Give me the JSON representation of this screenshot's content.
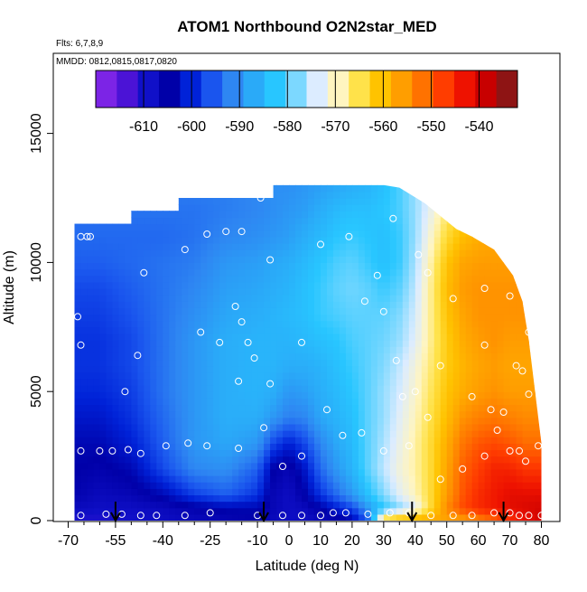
{
  "chart_data": {
    "type": "heatmap",
    "title": "ATOM1 Northbound O2N2star_MED",
    "annotations": [
      "Flts: 6,7,8,9",
      "MMDD: 0812,0815,0817,0820"
    ],
    "xlabel": "Latitude (deg N)",
    "ylabel": "Altitude (m)",
    "xlim": [
      -70,
      80
    ],
    "ylim": [
      0,
      17500
    ],
    "x_ticks": [
      -70,
      -55,
      -40,
      -25,
      -10,
      0,
      10,
      20,
      30,
      40,
      50,
      60,
      70,
      80
    ],
    "x_tick_labels": [
      "-70",
      "-55",
      "-40",
      "-25",
      "-10",
      "0",
      "10",
      "20",
      "30",
      "40",
      "50",
      "60",
      "70",
      "80"
    ],
    "minor_x_ticks": [
      -65,
      -60,
      -50,
      -45,
      -35,
      -30,
      -20,
      -15,
      -5,
      5,
      15,
      25,
      35,
      45,
      55,
      65,
      75
    ],
    "y_ticks": [
      0,
      5000,
      10000,
      15000
    ],
    "y_tick_labels": [
      "0",
      "5000",
      "10000",
      "15000"
    ],
    "colorbar": {
      "range": [
        -620,
        -532
      ],
      "ticks": [
        -610,
        -600,
        -590,
        -580,
        -570,
        -560,
        -550,
        -540
      ],
      "tick_labels": [
        "-610",
        "-600",
        "-590",
        "-580",
        "-570",
        "-560",
        "-550",
        "-540"
      ],
      "placement": "top-inside",
      "colors": [
        "#7c24e6",
        "#4b13d6",
        "#1010c8",
        "#0000a8",
        "#0022d8",
        "#1a55ee",
        "#2e86f2",
        "#2aaaf8",
        "#28c6ff",
        "#7cd8ff",
        "#dcecff",
        "#fff5c0",
        "#ffe24a",
        "#ffc300",
        "#ff9e00",
        "#ff7200",
        "#ff3d00",
        "#ee1200",
        "#c80000",
        "#8e1414"
      ]
    },
    "grid": false,
    "coverage": [
      [
        -68,
        11500
      ],
      [
        -50,
        11500
      ],
      [
        -50,
        12000
      ],
      [
        -35,
        12000
      ],
      [
        -35,
        12500
      ],
      [
        -5,
        12500
      ],
      [
        -5,
        13000
      ],
      [
        30,
        13000
      ],
      [
        35,
        12900
      ],
      [
        43,
        12300
      ],
      [
        48,
        11800
      ],
      [
        53,
        11300
      ],
      [
        58,
        11000
      ],
      [
        65,
        10500
      ],
      [
        71,
        9500
      ],
      [
        74,
        8500
      ],
      [
        76,
        7000
      ],
      [
        78,
        5000
      ],
      [
        80,
        3000
      ],
      [
        80,
        0
      ],
      [
        -68,
        0
      ]
    ],
    "field_grid": {
      "lat": [
        -68,
        -60,
        -50,
        -40,
        -30,
        -20,
        -10,
        -5,
        0,
        5,
        10,
        15,
        20,
        25,
        30,
        35,
        40,
        45,
        50,
        55,
        60,
        65,
        70,
        75,
        80
      ],
      "alt": [
        0,
        500,
        1000,
        2000,
        3000,
        4000,
        5000,
        6000,
        7000,
        8000,
        9000,
        10000,
        11000,
        12000,
        13000
      ],
      "values": [
        [
          -612,
          -612,
          -611,
          -610,
          -609,
          -608,
          -607,
          -609,
          -610,
          -610,
          -609,
          -608,
          -606,
          -596,
          -560,
          -557,
          -556,
          -556,
          -556,
          -556,
          -553,
          -550,
          -545,
          -541,
          -538
        ],
        [
          -609,
          -610,
          -610,
          -609,
          -607,
          -605,
          -605,
          -608,
          -610,
          -609,
          -606,
          -602,
          -598,
          -590,
          -583,
          -578,
          -573,
          -563,
          -553,
          -547,
          -544,
          -542,
          -540,
          -539,
          -538
        ],
        [
          -607,
          -609,
          -608,
          -605,
          -599,
          -596,
          -600,
          -608,
          -610,
          -606,
          -600,
          -595,
          -590,
          -584,
          -578,
          -573,
          -569,
          -563,
          -555,
          -548,
          -544,
          -542,
          -540,
          -540,
          -540
        ],
        [
          -606,
          -607,
          -605,
          -598,
          -592,
          -591,
          -596,
          -606,
          -608,
          -603,
          -595,
          -590,
          -586,
          -580,
          -575,
          -571,
          -568,
          -563,
          -556,
          -549,
          -546,
          -543,
          -543,
          -545,
          -545
        ],
        [
          -605,
          -605,
          -602,
          -596,
          -590,
          -588,
          -590,
          -598,
          -602,
          -598,
          -592,
          -588,
          -585,
          -580,
          -576,
          -572,
          -568,
          -563,
          -557,
          -551,
          -548,
          -547,
          -548,
          -550,
          -550
        ],
        [
          -603,
          -603,
          -600,
          -595,
          -590,
          -587,
          -587,
          -590,
          -593,
          -592,
          -588,
          -586,
          -584,
          -580,
          -577,
          -573,
          -569,
          -564,
          -559,
          -554,
          -552,
          -551,
          -552,
          -553,
          -553
        ],
        [
          -601,
          -601,
          -599,
          -594,
          -590,
          -587,
          -586,
          -587,
          -590,
          -589,
          -587,
          -585,
          -583,
          -580,
          -577,
          -574,
          -570,
          -565,
          -560,
          -557,
          -555,
          -554,
          -555,
          -555,
          -555
        ],
        [
          -600,
          -600,
          -598,
          -594,
          -590,
          -587,
          -586,
          -586,
          -587,
          -587,
          -586,
          -584,
          -582,
          -580,
          -578,
          -575,
          -571,
          -566,
          -561,
          -558,
          -556,
          -555,
          -556,
          -556,
          -556
        ],
        [
          -600,
          -600,
          -598,
          -594,
          -590,
          -587,
          -586,
          -586,
          -586,
          -585,
          -584,
          -583,
          -581,
          -580,
          -579,
          -577,
          -573,
          -567,
          -561,
          -557,
          -555,
          -554,
          -555,
          -555,
          -555
        ],
        [
          -599,
          -599,
          -597,
          -594,
          -591,
          -588,
          -587,
          -586,
          -585,
          -584,
          -582,
          -581,
          -580,
          -580,
          -580,
          -578,
          -574,
          -567,
          -560,
          -556,
          -554,
          -554,
          -554,
          -554,
          -554
        ],
        [
          -598,
          -598,
          -596,
          -594,
          -592,
          -589,
          -588,
          -587,
          -586,
          -584,
          -582,
          -580,
          -579,
          -580,
          -582,
          -580,
          -575,
          -567,
          -559,
          -555,
          -554,
          -554,
          -554,
          -554,
          -554
        ],
        [
          -596,
          -596,
          -595,
          -594,
          -593,
          -590,
          -589,
          -588,
          -587,
          -585,
          -583,
          -581,
          -580,
          -582,
          -584,
          -582,
          -576,
          -568,
          -560,
          -556,
          -555,
          -555,
          -555,
          -555,
          -555
        ],
        [
          -595,
          -595,
          -595,
          -595,
          -594,
          -592,
          -591,
          -590,
          -589,
          -587,
          -585,
          -583,
          -582,
          -583,
          -584,
          -582,
          -577,
          -570,
          -563,
          -559,
          -557,
          -556,
          -556,
          -556,
          -556
        ],
        [
          -594,
          -594,
          -594,
          -594,
          -594,
          -593,
          -592,
          -591,
          -590,
          -589,
          -587,
          -585,
          -584,
          -584,
          -583,
          -581,
          -577,
          -572,
          -566,
          -562,
          -560,
          -559,
          -559,
          -559,
          -559
        ],
        [
          -593,
          -593,
          -593,
          -593,
          -593,
          -593,
          -592,
          -591,
          -591,
          -590,
          -589,
          -588,
          -587,
          -586,
          -584,
          -581,
          -577,
          -573,
          -568,
          -565,
          -563,
          -562,
          -562,
          -562,
          -562
        ]
      ]
    },
    "observation_points": [
      [
        -66,
        200
      ],
      [
        -58,
        250
      ],
      [
        -53,
        250
      ],
      [
        -47,
        200
      ],
      [
        -42,
        200
      ],
      [
        -33,
        200
      ],
      [
        -25,
        300
      ],
      [
        -10,
        200
      ],
      [
        -2,
        200
      ],
      [
        4,
        200
      ],
      [
        10,
        200
      ],
      [
        14,
        300
      ],
      [
        18,
        300
      ],
      [
        25,
        250
      ],
      [
        32,
        300
      ],
      [
        38,
        300
      ],
      [
        45,
        200
      ],
      [
        52,
        200
      ],
      [
        58,
        200
      ],
      [
        65,
        300
      ],
      [
        70,
        300
      ],
      [
        73,
        200
      ],
      [
        76,
        200
      ],
      [
        80,
        200
      ],
      [
        -66,
        2700
      ],
      [
        -60,
        2700
      ],
      [
        -56,
        2700
      ],
      [
        -51,
        2750
      ],
      [
        -47,
        2600
      ],
      [
        -39,
        2900
      ],
      [
        -32,
        3000
      ],
      [
        -26,
        2900
      ],
      [
        -16,
        2800
      ],
      [
        -8,
        3600
      ],
      [
        -2,
        2100
      ],
      [
        4,
        2500
      ],
      [
        17,
        3300
      ],
      [
        23,
        3400
      ],
      [
        30,
        2700
      ],
      [
        38,
        2900
      ],
      [
        48,
        1600
      ],
      [
        55,
        2000
      ],
      [
        62,
        2500
      ],
      [
        70,
        2700
      ],
      [
        73,
        2700
      ],
      [
        75,
        2300
      ],
      [
        79,
        2900
      ],
      [
        -66,
        6800
      ],
      [
        -67,
        7900
      ],
      [
        -52,
        5000
      ],
      [
        -48,
        6400
      ],
      [
        -28,
        7300
      ],
      [
        -22,
        6900
      ],
      [
        -16,
        5400
      ],
      [
        -15,
        7700
      ],
      [
        -13,
        6900
      ],
      [
        -11,
        6300
      ],
      [
        -6,
        5300
      ],
      [
        4,
        6900
      ],
      [
        12,
        4300
      ],
      [
        24,
        8500
      ],
      [
        30,
        8100
      ],
      [
        34,
        6200
      ],
      [
        36,
        4800
      ],
      [
        40,
        5000
      ],
      [
        44,
        4000
      ],
      [
        48,
        6000
      ],
      [
        58,
        4800
      ],
      [
        62,
        6800
      ],
      [
        64,
        4300
      ],
      [
        66,
        3500
      ],
      [
        68,
        4200
      ],
      [
        72,
        6000
      ],
      [
        74,
        5800
      ],
      [
        76,
        4900
      ],
      [
        77,
        8100
      ],
      [
        -66,
        11000
      ],
      [
        -64,
        11000
      ],
      [
        -63,
        11000
      ],
      [
        -46,
        9600
      ],
      [
        -33,
        10500
      ],
      [
        -26,
        11100
      ],
      [
        -20,
        11200
      ],
      [
        -17,
        8300
      ],
      [
        -15,
        11200
      ],
      [
        -9,
        12500
      ],
      [
        -6,
        10100
      ],
      [
        10,
        10700
      ],
      [
        19,
        11000
      ],
      [
        28,
        9500
      ],
      [
        33,
        11700
      ],
      [
        41,
        10300
      ],
      [
        44,
        9600
      ],
      [
        52,
        8600
      ],
      [
        62,
        9000
      ],
      [
        70,
        8700
      ],
      [
        73,
        9900
      ],
      [
        76,
        7300
      ],
      [
        78,
        7500
      ],
      [
        43,
        12800
      ]
    ],
    "flight_markers": [
      -55,
      -8,
      39,
      68
    ]
  }
}
